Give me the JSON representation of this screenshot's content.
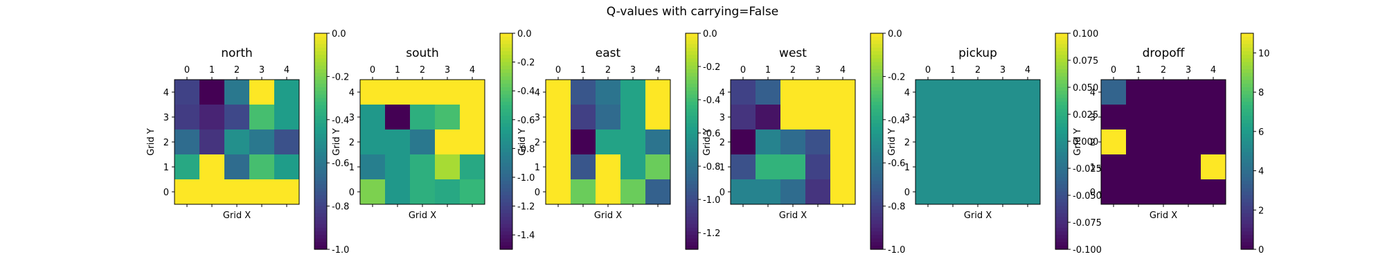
{
  "figure": {
    "title": "Q-values with carrying=False"
  },
  "colormap": [
    "#440154",
    "#482878",
    "#3e4989",
    "#31688e",
    "#26828e",
    "#1f9e89",
    "#35b779",
    "#6ece58",
    "#b5de2b",
    "#fde725"
  ],
  "chart_data": [
    {
      "type": "heatmap",
      "title": "north",
      "xlabel": "Grid X",
      "ylabel": "Grid Y",
      "x_ticks": [
        "0",
        "1",
        "2",
        "3",
        "4"
      ],
      "y_ticks": [
        "0",
        "1",
        "2",
        "3",
        "4"
      ],
      "vmin": -1.0,
      "vmax": 0.0,
      "colorbar_ticks": [
        "-1.0",
        "-0.8",
        "-0.6",
        "-0.4",
        "-0.2",
        "0.0"
      ],
      "rows_top_to_bottom": [
        [
          -0.8,
          -1.0,
          -0.6,
          0.0,
          -0.45
        ],
        [
          -0.82,
          -0.9,
          -0.78,
          -0.3,
          -0.45
        ],
        [
          -0.65,
          -0.85,
          -0.5,
          -0.6,
          -0.75
        ],
        [
          -0.4,
          0.0,
          -0.65,
          -0.3,
          -0.45
        ],
        [
          0.0,
          0.0,
          0.0,
          0.0,
          0.0
        ]
      ]
    },
    {
      "type": "heatmap",
      "title": "south",
      "xlabel": "Grid X",
      "ylabel": "Grid Y",
      "x_ticks": [
        "0",
        "1",
        "2",
        "3",
        "4"
      ],
      "y_ticks": [
        "0",
        "1",
        "2",
        "3",
        "4"
      ],
      "vmin": -1.5,
      "vmax": 0.0,
      "colorbar_ticks": [
        "-1.4",
        "-1.2",
        "-1.0",
        "-0.8",
        "-0.6",
        "-0.4",
        "-0.2",
        "0.0"
      ],
      "rows_top_to_bottom": [
        [
          0.0,
          0.0,
          0.0,
          0.0,
          0.0
        ],
        [
          -0.7,
          -1.5,
          -0.55,
          -0.45,
          0.0
        ],
        [
          -0.7,
          -0.7,
          -0.9,
          0.0,
          0.0
        ],
        [
          -0.85,
          -0.7,
          -0.55,
          -0.2,
          -0.6
        ],
        [
          -0.3,
          -0.7,
          -0.55,
          -0.6,
          -0.5
        ]
      ]
    },
    {
      "type": "heatmap",
      "title": "east",
      "xlabel": "Grid X",
      "ylabel": "Grid Y",
      "x_ticks": [
        "0",
        "1",
        "2",
        "3",
        "4"
      ],
      "y_ticks": [
        "0",
        "1",
        "2",
        "3",
        "4"
      ],
      "vmin": -1.3,
      "vmax": 0.0,
      "colorbar_ticks": [
        "-1.2",
        "-1.0",
        "-0.8",
        "-0.6",
        "-0.4",
        "-0.2",
        "0.0"
      ],
      "rows_top_to_bottom": [
        [
          0.0,
          -0.95,
          -0.8,
          -0.55,
          0.0
        ],
        [
          0.0,
          -1.05,
          -0.85,
          -0.55,
          0.0
        ],
        [
          0.0,
          -1.3,
          -0.55,
          -0.55,
          -0.8
        ],
        [
          0.0,
          -0.95,
          0.0,
          -0.55,
          -0.3
        ],
        [
          0.0,
          -0.3,
          0.0,
          -0.3,
          -0.9
        ]
      ]
    },
    {
      "type": "heatmap",
      "title": "west",
      "xlabel": "Grid X",
      "ylabel": "Grid Y",
      "x_ticks": [
        "0",
        "1",
        "2",
        "3",
        "4"
      ],
      "y_ticks": [
        "0",
        "1",
        "2",
        "3",
        "4"
      ],
      "vmin": -1.0,
      "vmax": 0.0,
      "colorbar_ticks": [
        "-1.0",
        "-0.8",
        "-0.6",
        "-0.4",
        "-0.2",
        "0.0"
      ],
      "rows_top_to_bottom": [
        [
          -0.8,
          -0.7,
          0.0,
          0.0,
          0.0
        ],
        [
          -0.85,
          -0.95,
          0.0,
          0.0,
          0.0
        ],
        [
          -1.0,
          -0.55,
          -0.65,
          -0.75,
          0.0
        ],
        [
          -0.75,
          -0.35,
          -0.35,
          -0.8,
          0.0
        ],
        [
          -0.55,
          -0.55,
          -0.65,
          -0.85,
          0.0
        ]
      ]
    },
    {
      "type": "heatmap",
      "title": "pickup",
      "xlabel": "Grid X",
      "ylabel": "Grid Y",
      "x_ticks": [
        "0",
        "1",
        "2",
        "3",
        "4"
      ],
      "y_ticks": [
        "0",
        "1",
        "2",
        "3",
        "4"
      ],
      "vmin": -0.1,
      "vmax": 0.1,
      "colorbar_ticks": [
        "-0.100",
        "-0.075",
        "-0.050",
        "-0.025",
        "0.000",
        "0.025",
        "0.050",
        "0.075",
        "0.100"
      ],
      "rows_top_to_bottom": [
        [
          0.0,
          0.0,
          0.0,
          0.0,
          0.0
        ],
        [
          0.0,
          0.0,
          0.0,
          0.0,
          0.0
        ],
        [
          0.0,
          0.0,
          0.0,
          0.0,
          0.0
        ],
        [
          0.0,
          0.0,
          0.0,
          0.0,
          0.0
        ],
        [
          0.0,
          0.0,
          0.0,
          0.0,
          0.0
        ]
      ]
    },
    {
      "type": "heatmap",
      "title": "dropoff",
      "xlabel": "Grid X",
      "ylabel": "Grid Y",
      "x_ticks": [
        "0",
        "1",
        "2",
        "3",
        "4"
      ],
      "y_ticks": [
        "0",
        "1",
        "2",
        "3",
        "4"
      ],
      "vmin": 0,
      "vmax": 11,
      "colorbar_ticks": [
        "0",
        "2",
        "4",
        "6",
        "8",
        "10"
      ],
      "rows_top_to_bottom": [
        [
          3.5,
          0,
          0,
          0,
          0
        ],
        [
          0,
          0,
          0,
          0,
          0
        ],
        [
          11,
          0,
          0,
          0,
          0
        ],
        [
          0,
          0,
          0,
          0,
          11
        ],
        [
          0,
          0,
          0,
          0,
          0
        ]
      ]
    }
  ]
}
